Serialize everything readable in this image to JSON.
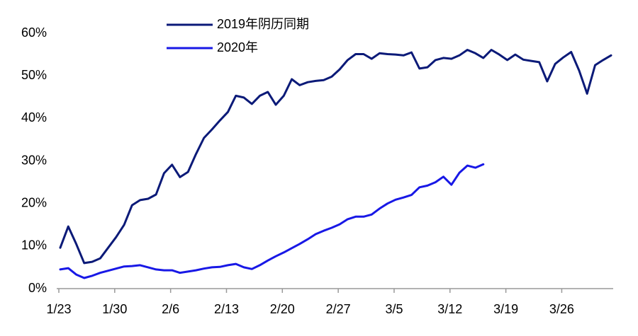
{
  "chart_data": {
    "type": "line",
    "categories": [
      "1/23",
      null,
      null,
      null,
      null,
      null,
      null,
      "1/30",
      null,
      null,
      null,
      null,
      null,
      null,
      "2/6",
      null,
      null,
      null,
      null,
      null,
      null,
      "2/13",
      null,
      null,
      null,
      null,
      null,
      null,
      "2/20",
      null,
      null,
      null,
      null,
      null,
      null,
      "2/27",
      null,
      null,
      null,
      null,
      null,
      null,
      "3/5",
      null,
      null,
      null,
      null,
      null,
      null,
      "3/12",
      null,
      null,
      null,
      null,
      null,
      null,
      "3/19",
      null,
      null,
      null,
      null,
      null,
      null,
      "3/26",
      null,
      null,
      null,
      null,
      null,
      null
    ],
    "series": [
      {
        "name": "2019年阴历同期",
        "color": "#0b1a78",
        "values": [
          9.6,
          14.6,
          10.5,
          6,
          6.3,
          7.1,
          9.6,
          12.1,
          15,
          19.6,
          20.8,
          21.1,
          22.1,
          27.1,
          29.1,
          26.2,
          27.4,
          31.6,
          35.4,
          37.4,
          39.5,
          41.5,
          45.3,
          44.9,
          43.4,
          45.3,
          46.2,
          43.2,
          45.3,
          49.2,
          47.8,
          48.5,
          48.8,
          49,
          49.8,
          51.5,
          53.7,
          55.1,
          55.1,
          54,
          55.3,
          55.1,
          55,
          54.8,
          55.5,
          51.7,
          52,
          53.7,
          54.2,
          54,
          54.8,
          56.1,
          55.3,
          54.2,
          56.1,
          55,
          53.7,
          55,
          53.8,
          53.5,
          53.2,
          48.7,
          52.8,
          54.3,
          55.6,
          51.2,
          45.8,
          52.5,
          53.7,
          54.8
        ]
      },
      {
        "name": "2020年",
        "color": "#1818e6",
        "values": [
          4.5,
          4.8,
          3.3,
          2.5,
          3,
          3.7,
          4.2,
          4.7,
          5.2,
          5.3,
          5.5,
          5,
          4.5,
          4.3,
          4.3,
          3.7,
          4,
          4.3,
          4.7,
          5,
          5.1,
          5.5,
          5.8,
          5,
          4.6,
          5.5,
          6.6,
          7.6,
          8.5,
          9.5,
          10.5,
          11.6,
          12.8,
          13.6,
          14.3,
          15.1,
          16.3,
          16.9,
          16.9,
          17.4,
          18.8,
          20,
          20.9,
          21.4,
          22,
          23.8,
          24.2,
          25,
          26.3,
          24.4,
          27.2,
          28.9,
          28.4,
          29.2,
          null,
          null,
          null,
          null,
          null,
          null,
          null,
          null,
          null,
          null,
          null,
          null,
          null,
          null,
          null,
          null
        ]
      }
    ],
    "ylim": [
      0,
      60
    ],
    "yticks": [
      {
        "value": 0,
        "label": "0%"
      },
      {
        "value": 10,
        "label": "10%"
      },
      {
        "value": 20,
        "label": "20%"
      },
      {
        "value": 30,
        "label": "30%"
      },
      {
        "value": 40,
        "label": "40%"
      },
      {
        "value": 50,
        "label": "50%"
      },
      {
        "value": 60,
        "label": "60%"
      }
    ],
    "grid": false
  }
}
